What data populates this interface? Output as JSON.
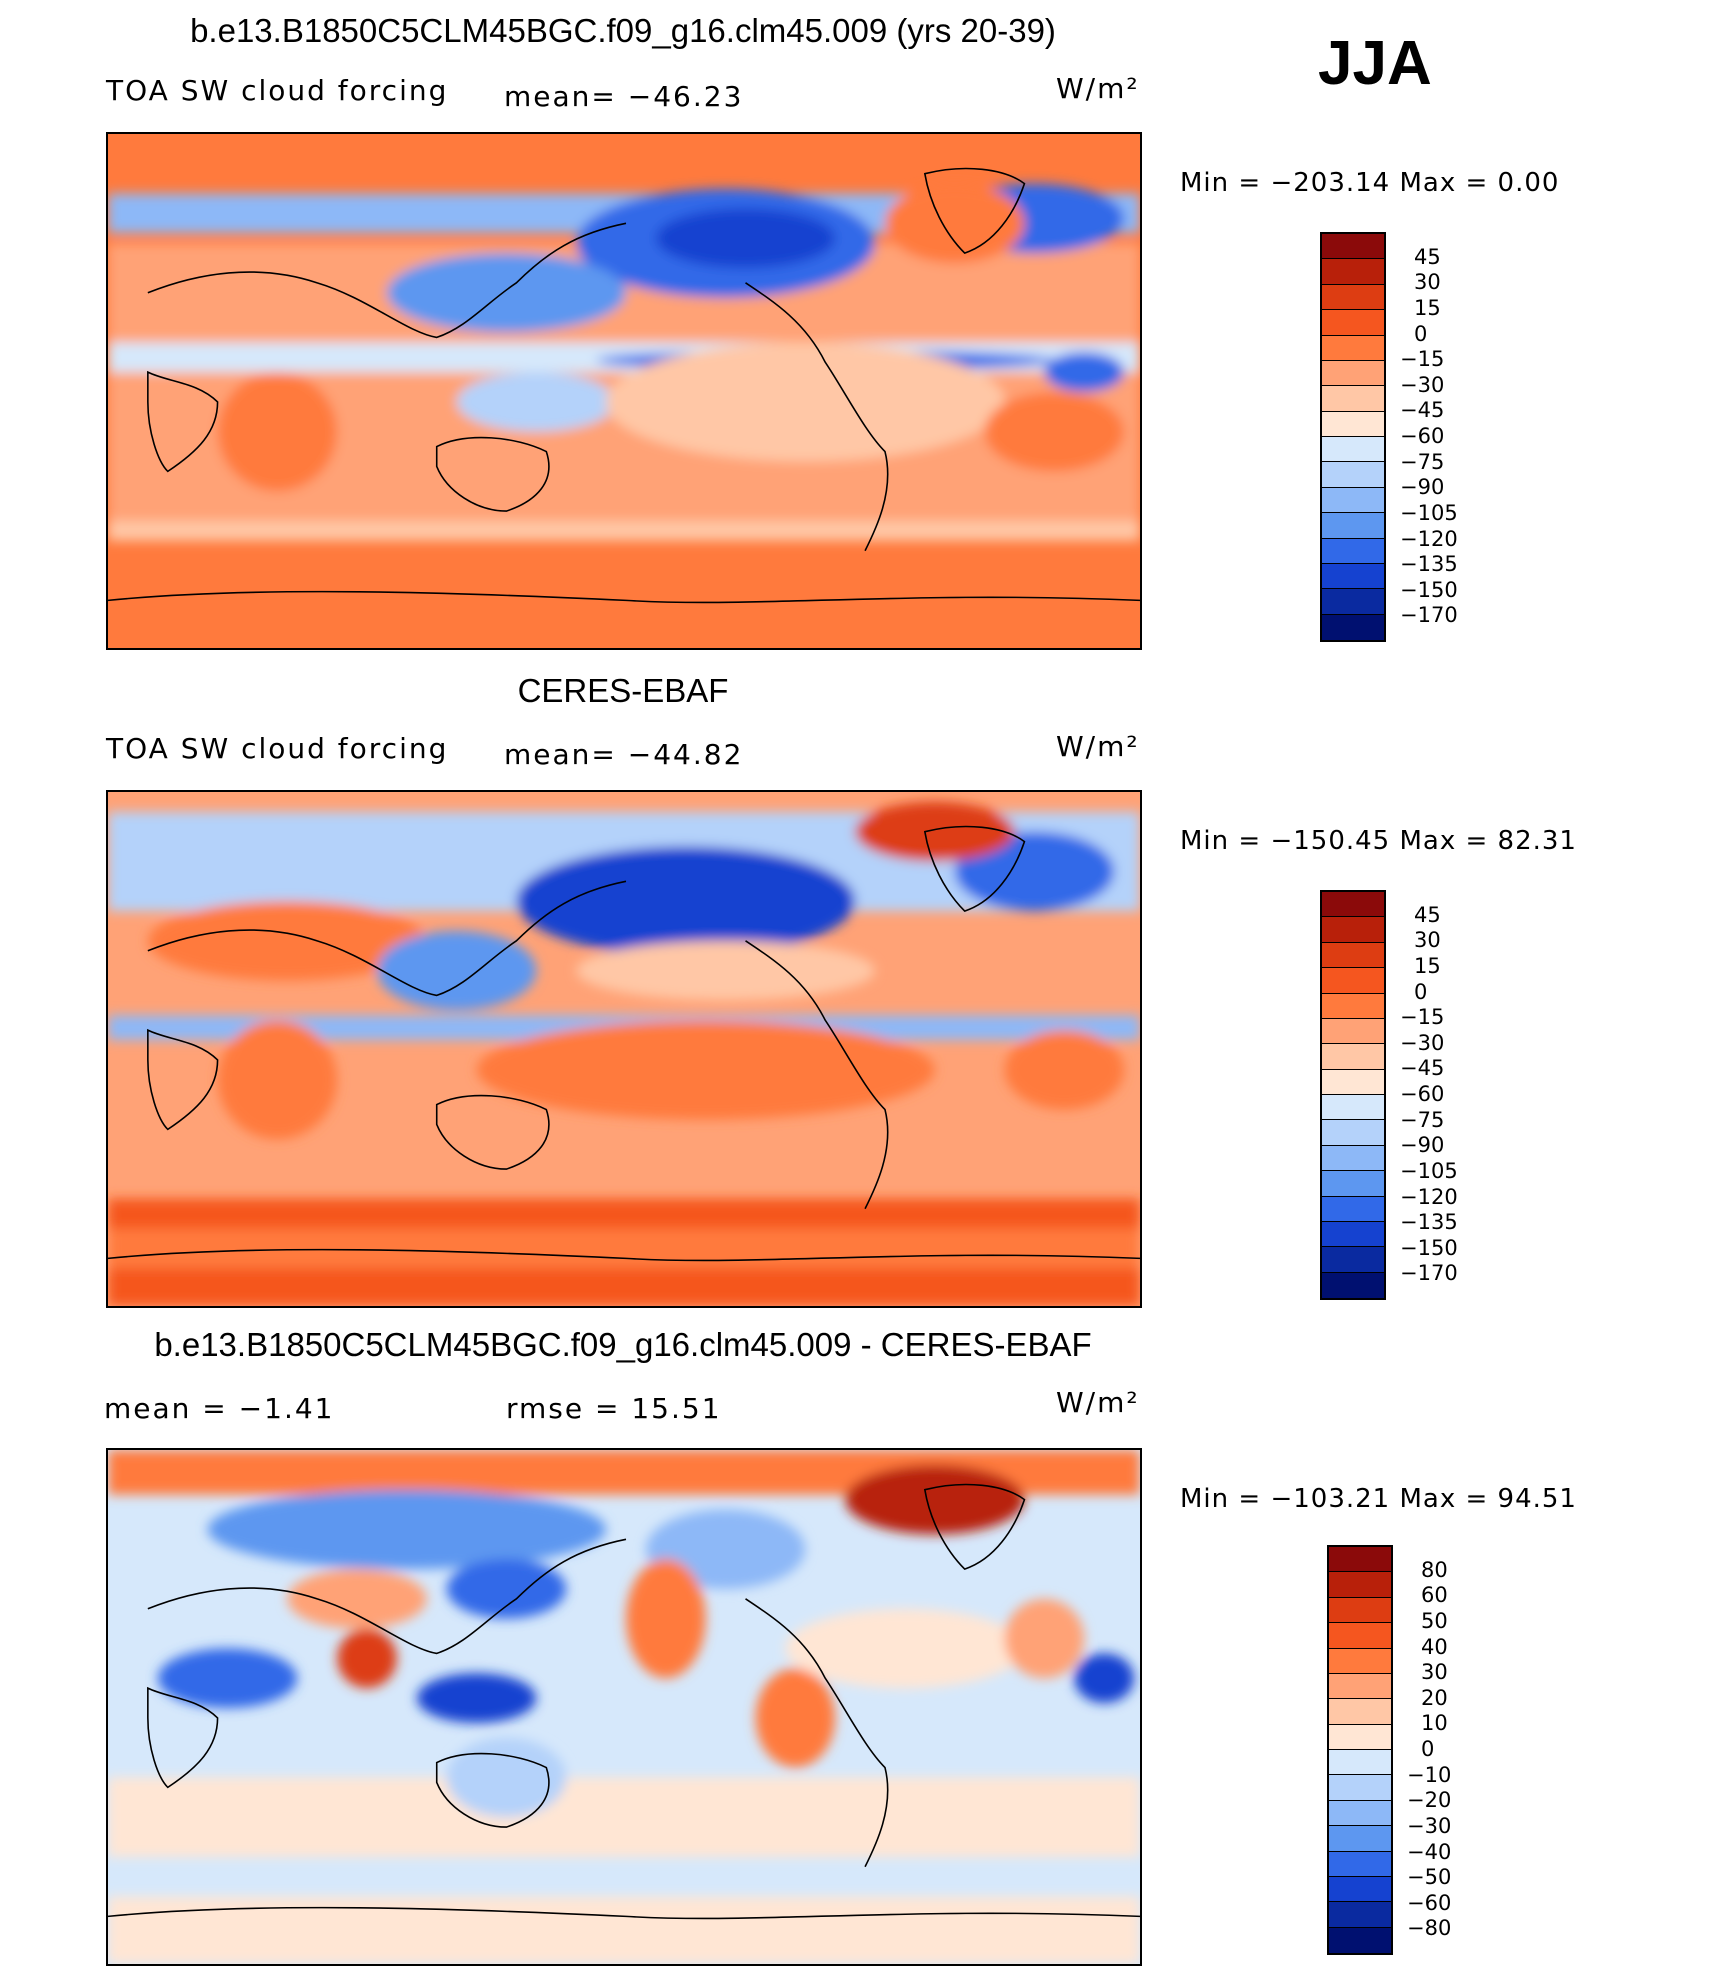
{
  "season": "JJA",
  "panels": [
    {
      "title": "b.e13.B1850C5CLM45BGC.f09_g16.clm45.009 (yrs 20-39)",
      "left_label": "TOA SW cloud forcing",
      "mid_label": "mean= −46.23",
      "units": "W/m²",
      "minmax": "Min = −203.14 Max =   0.00",
      "colorbar": {
        "labels": [
          "45",
          "30",
          "15",
          "0",
          "−15",
          "−30",
          "−45",
          "−60",
          "−75",
          "−90",
          "−105",
          "−120",
          "−135",
          "−150",
          "−170"
        ],
        "colors": [
          "#8b0a0a",
          "#b8200a",
          "#dd3d12",
          "#f5561f",
          "#ff7a3d",
          "#ffa276",
          "#ffc7a6",
          "#ffe6d4",
          "#d6e8fb",
          "#b4d2fa",
          "#8db8f7",
          "#5d97f0",
          "#3169e8",
          "#1542d0",
          "#0a2aa0",
          "#001070"
        ]
      }
    },
    {
      "title": "CERES-EBAF",
      "left_label": "TOA SW cloud forcing",
      "mid_label": "mean= −44.82",
      "units": "W/m²",
      "minmax": "Min = −150.45 Max =  82.31",
      "colorbar": {
        "labels": [
          "45",
          "30",
          "15",
          "0",
          "−15",
          "−30",
          "−45",
          "−60",
          "−75",
          "−90",
          "−105",
          "−120",
          "−135",
          "−150",
          "−170"
        ],
        "colors": [
          "#8b0a0a",
          "#b8200a",
          "#dd3d12",
          "#f5561f",
          "#ff7a3d",
          "#ffa276",
          "#ffc7a6",
          "#ffe6d4",
          "#d6e8fb",
          "#b4d2fa",
          "#8db8f7",
          "#5d97f0",
          "#3169e8",
          "#1542d0",
          "#0a2aa0",
          "#001070"
        ]
      }
    },
    {
      "title": "b.e13.B1850C5CLM45BGC.f09_g16.clm45.009 - CERES-EBAF",
      "left_label": "mean =   −1.41",
      "mid_label": "rmse =   15.51",
      "units": "W/m²",
      "minmax": "Min = −103.21 Max =  94.51",
      "colorbar": {
        "labels": [
          "80",
          "60",
          "50",
          "40",
          "30",
          "20",
          "10",
          "0",
          "−10",
          "−20",
          "−30",
          "−40",
          "−50",
          "−60",
          "−80"
        ],
        "colors": [
          "#8b0a0a",
          "#b8200a",
          "#dd3d12",
          "#f5561f",
          "#ff7a3d",
          "#ffa276",
          "#ffc7a6",
          "#ffe6d4",
          "#d6e8fb",
          "#b4d2fa",
          "#8db8f7",
          "#5d97f0",
          "#3169e8",
          "#1542d0",
          "#0a2aa0",
          "#001070"
        ]
      }
    }
  ]
}
